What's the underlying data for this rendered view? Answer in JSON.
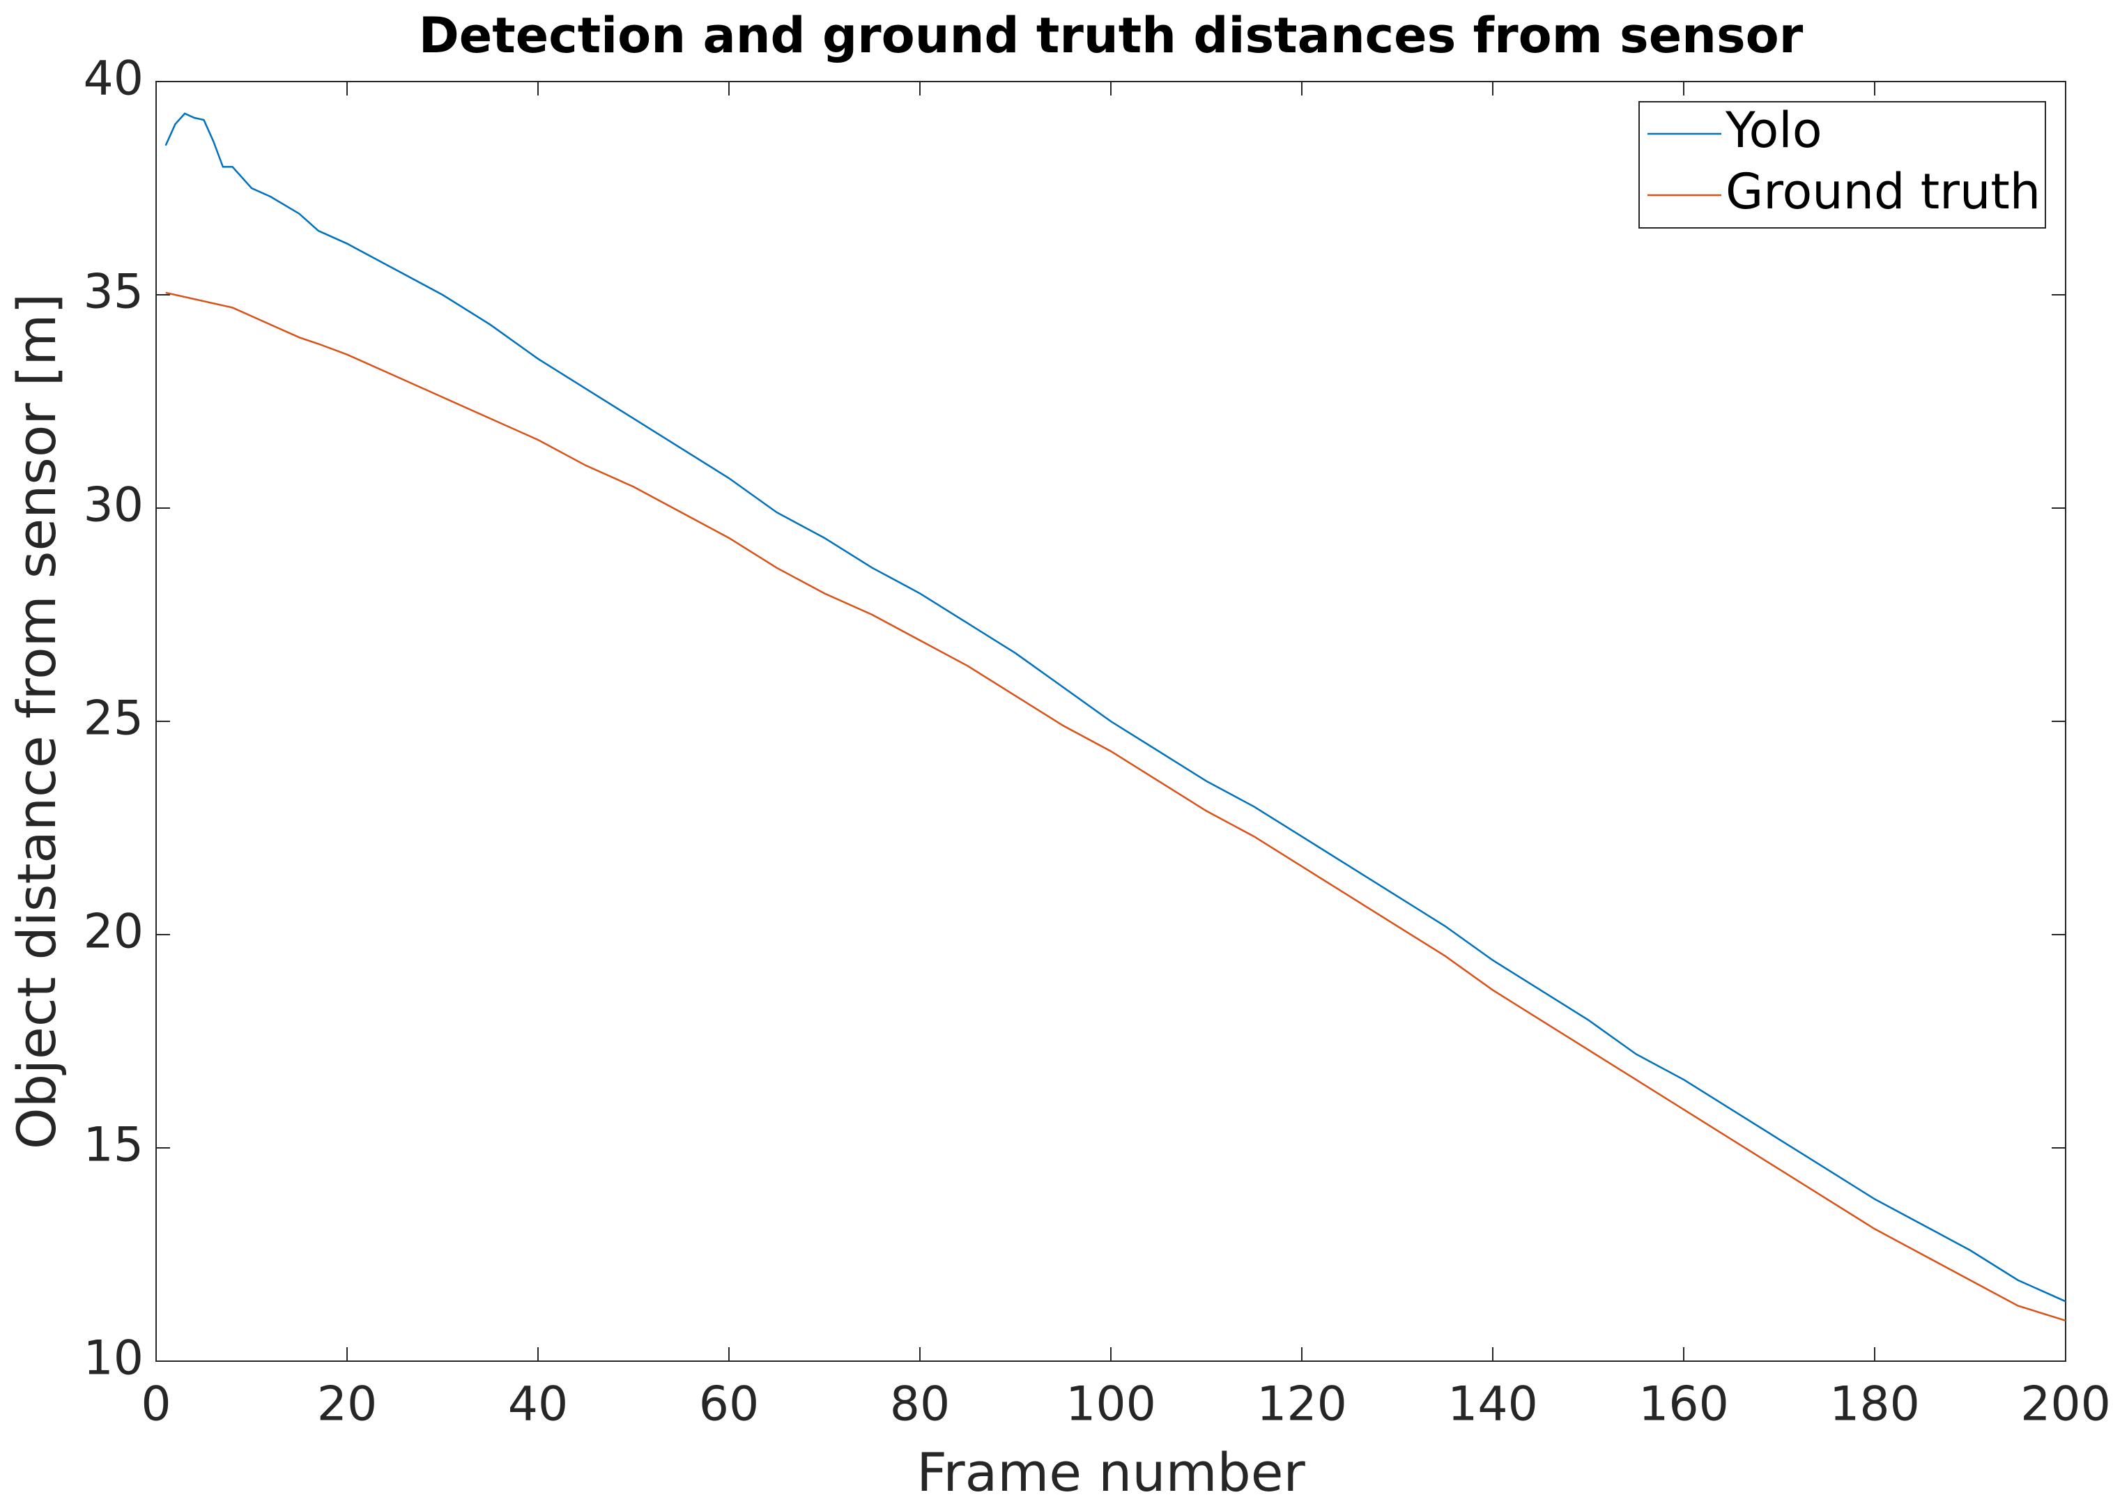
{
  "chart_data": {
    "type": "line",
    "title": "Detection and ground truth distances from sensor",
    "xlabel": "Frame number",
    "ylabel": "Object distance from sensor [m]",
    "x": [
      1,
      2,
      3,
      4,
      5,
      6,
      7,
      8,
      10,
      12,
      15,
      17,
      20,
      25,
      30,
      35,
      40,
      45,
      50,
      55,
      60,
      65,
      70,
      75,
      80,
      85,
      90,
      95,
      100,
      105,
      110,
      115,
      120,
      125,
      130,
      135,
      140,
      145,
      150,
      155,
      160,
      165,
      170,
      175,
      180,
      185,
      190,
      195,
      200
    ],
    "series": [
      {
        "name": "Yolo",
        "color": "#0072bd",
        "values": [
          38.5,
          39.0,
          39.25,
          39.15,
          39.1,
          38.6,
          38.0,
          38.0,
          37.5,
          37.3,
          36.9,
          36.5,
          36.2,
          35.6,
          35.0,
          34.3,
          33.5,
          32.8,
          32.1,
          31.4,
          30.7,
          29.9,
          29.3,
          28.6,
          28.0,
          27.3,
          26.6,
          25.8,
          25.0,
          24.3,
          23.6,
          23.0,
          22.3,
          21.6,
          20.9,
          20.2,
          19.4,
          18.7,
          18.0,
          17.2,
          16.6,
          15.9,
          15.2,
          14.5,
          13.8,
          13.2,
          12.6,
          11.9,
          11.4
        ]
      },
      {
        "name": "Ground truth",
        "color": "#d95319",
        "values": [
          35.05,
          35.0,
          34.95,
          34.9,
          34.85,
          34.8,
          34.75,
          34.7,
          34.5,
          34.3,
          34.0,
          33.85,
          33.6,
          33.1,
          32.6,
          32.1,
          31.6,
          31.0,
          30.5,
          29.9,
          29.3,
          28.6,
          28.0,
          27.5,
          26.9,
          26.3,
          25.6,
          24.9,
          24.3,
          23.6,
          22.9,
          22.3,
          21.6,
          20.9,
          20.2,
          19.5,
          18.7,
          18.0,
          17.3,
          16.6,
          15.9,
          15.2,
          14.5,
          13.8,
          13.1,
          12.5,
          11.9,
          11.3,
          10.95
        ]
      }
    ],
    "xlim": [
      0,
      200
    ],
    "xticks": [
      0,
      20,
      40,
      60,
      80,
      100,
      120,
      140,
      160,
      180,
      200
    ],
    "ylim": [
      10,
      40
    ],
    "yticks": [
      10,
      15,
      20,
      25,
      30,
      35,
      40
    ],
    "grid": false,
    "legend": "upper right"
  }
}
